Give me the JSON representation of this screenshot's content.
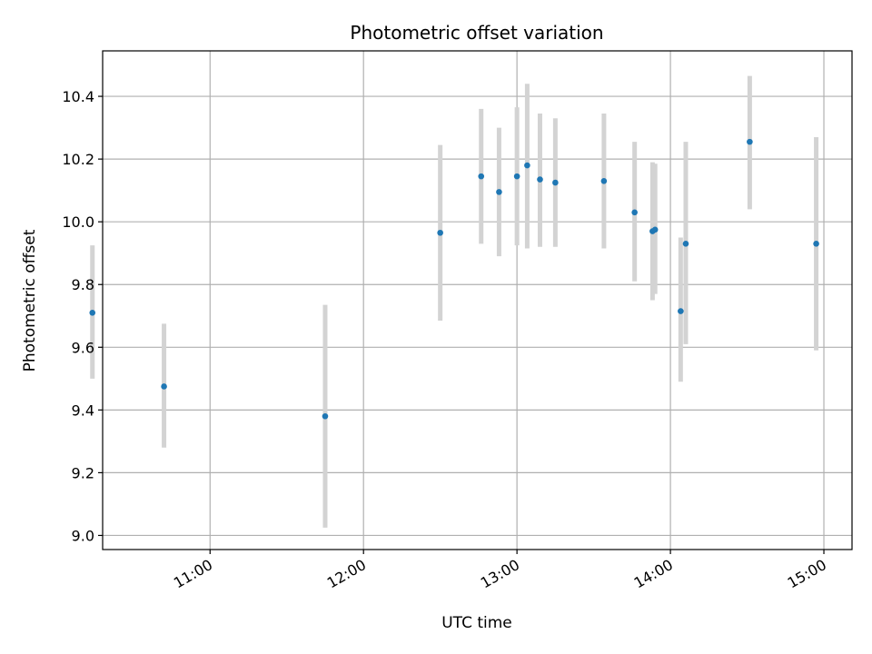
{
  "chart_data": {
    "type": "scatter",
    "title": "Photometric offset variation",
    "xlabel": "UTC time",
    "ylabel": "Photometric offset",
    "xlim": [
      "10:18",
      "15:11"
    ],
    "ylim": [
      8.955,
      10.545
    ],
    "grid": true,
    "x_ticks": [
      "11:00",
      "12:00",
      "13:00",
      "14:00",
      "15:00"
    ],
    "y_ticks": [
      "9.0",
      "9.2",
      "9.4",
      "9.6",
      "9.8",
      "10.0",
      "10.2",
      "10.4"
    ],
    "colors": {
      "points": "#1f77b4",
      "errorbars": "#d3d3d3",
      "grid": "#b0b0b0"
    },
    "series": [
      {
        "points": [
          {
            "x": "10:14",
            "y": 9.71,
            "ylow": 9.5,
            "yhigh": 9.925
          },
          {
            "x": "10:42",
            "y": 9.475,
            "ylow": 9.28,
            "yhigh": 9.675
          },
          {
            "x": "11:45",
            "y": 9.38,
            "ylow": 9.025,
            "yhigh": 9.735
          },
          {
            "x": "12:30",
            "y": 9.965,
            "ylow": 9.685,
            "yhigh": 10.245
          },
          {
            "x": "12:46",
            "y": 10.145,
            "ylow": 9.93,
            "yhigh": 10.36
          },
          {
            "x": "12:53",
            "y": 10.095,
            "ylow": 9.89,
            "yhigh": 10.3
          },
          {
            "x": "13:00",
            "y": 10.145,
            "ylow": 9.925,
            "yhigh": 10.365
          },
          {
            "x": "13:04",
            "y": 10.18,
            "ylow": 9.915,
            "yhigh": 10.44
          },
          {
            "x": "13:09",
            "y": 10.135,
            "ylow": 9.92,
            "yhigh": 10.345
          },
          {
            "x": "13:15",
            "y": 10.125,
            "ylow": 9.92,
            "yhigh": 10.33
          },
          {
            "x": "13:34",
            "y": 10.13,
            "ylow": 9.915,
            "yhigh": 10.345
          },
          {
            "x": "13:46",
            "y": 10.03,
            "ylow": 9.81,
            "yhigh": 10.255
          },
          {
            "x": "13:53",
            "y": 9.97,
            "ylow": 9.75,
            "yhigh": 10.19
          },
          {
            "x": "13:54",
            "y": 9.975,
            "ylow": 9.77,
            "yhigh": 10.185
          },
          {
            "x": "14:04",
            "y": 9.715,
            "ylow": 9.49,
            "yhigh": 9.95
          },
          {
            "x": "14:06",
            "y": 9.93,
            "ylow": 9.61,
            "yhigh": 10.255
          },
          {
            "x": "14:31",
            "y": 10.255,
            "ylow": 10.04,
            "yhigh": 10.465
          },
          {
            "x": "14:57",
            "y": 9.93,
            "ylow": 9.59,
            "yhigh": 10.27
          }
        ]
      }
    ]
  }
}
